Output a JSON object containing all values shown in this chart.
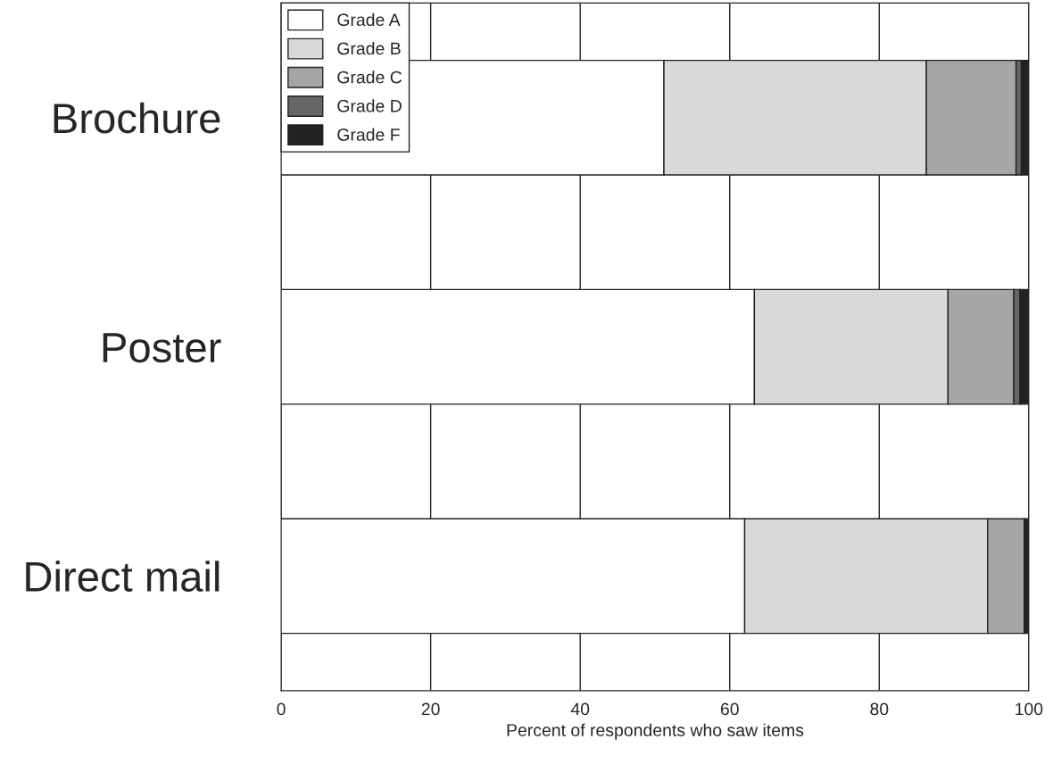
{
  "chart_data": {
    "type": "bar",
    "orientation": "horizontal",
    "stacked": true,
    "categories": [
      "Brochure",
      "Poster",
      "Direct mail"
    ],
    "series": [
      {
        "name": "Grade A",
        "color": "#ffffff",
        "values": [
          51.2,
          63.3,
          62.0
        ]
      },
      {
        "name": "Grade B",
        "color": "#d9d9d9",
        "values": [
          35.1,
          25.9,
          32.5
        ]
      },
      {
        "name": "Grade C",
        "color": "#a6a6a6",
        "values": [
          12.0,
          8.8,
          4.9
        ]
      },
      {
        "name": "Grade D",
        "color": "#666666",
        "values": [
          0.7,
          0.8,
          0
        ]
      },
      {
        "name": "Grade F",
        "color": "#222222",
        "values": [
          1.0,
          1.2,
          0.6
        ]
      }
    ],
    "xlabel": "Percent of respondents who saw items",
    "xlim": [
      0,
      100
    ],
    "xticks": [
      0,
      20,
      40,
      60,
      80,
      100
    ],
    "grid": "x",
    "legend": "top left"
  }
}
